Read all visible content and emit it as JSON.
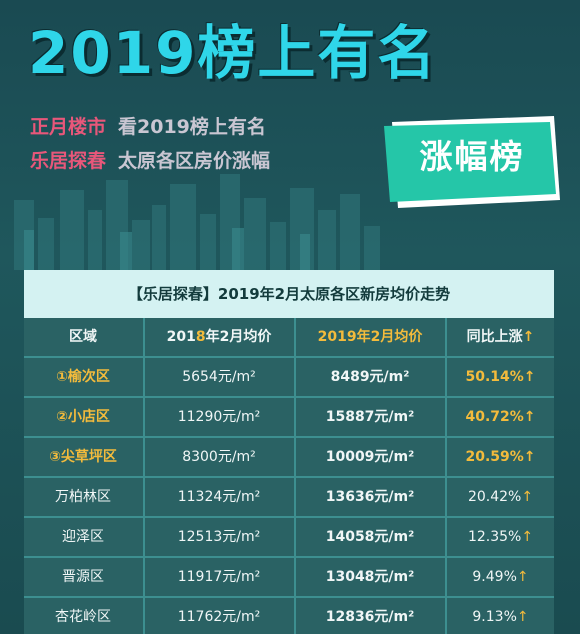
{
  "banner": {
    "title": "2019榜上有名",
    "line1_key": "正月楼市",
    "line1_text": "看2019榜上有名",
    "line2_key": "乐居探春",
    "line2_text": "太原各区房价涨幅",
    "tag": "涨幅榜"
  },
  "table": {
    "caption": "【乐居探春】2019年2月太原各区新房均价走势",
    "headers": {
      "area": "区域",
      "y2018_pre": "201",
      "y2018_hl": "8",
      "y2018_post": "年2月均价",
      "y2019": "2019年2月均价",
      "yoy": "同比上涨",
      "yoy_arrow": "↑"
    },
    "rows": [
      {
        "district": "①榆次区",
        "p2018": "5654元/m²",
        "p2019": "8489元/m²",
        "pct": "50.14%",
        "arrow": "↑",
        "top": true
      },
      {
        "district": "②小店区",
        "p2018": "11290元/m²",
        "p2019": "15887元/m²",
        "pct": "40.72%",
        "arrow": "↑",
        "top": true
      },
      {
        "district": "③尖草坪区",
        "p2018": "8300元/m²",
        "p2019": "10009元/m²",
        "pct": "20.59%",
        "arrow": "↑",
        "top": true
      },
      {
        "district": "万柏林区",
        "p2018": "11324元/m²",
        "p2019": "13636元/m²",
        "pct": "20.42%",
        "arrow": "↑",
        "top": false
      },
      {
        "district": "迎泽区",
        "p2018": "12513元/m²",
        "p2019": "14058元/m²",
        "pct": "12.35%",
        "arrow": "↑",
        "top": false
      },
      {
        "district": "晋源区",
        "p2018": "11917元/m²",
        "p2019": "13048元/m²",
        "pct": "9.49%",
        "arrow": "↑",
        "top": false
      },
      {
        "district": "杏花岭区",
        "p2018": "11762元/m²",
        "p2019": "12836元/m²",
        "pct": "9.13%",
        "arrow": "↑",
        "top": false
      }
    ]
  }
}
